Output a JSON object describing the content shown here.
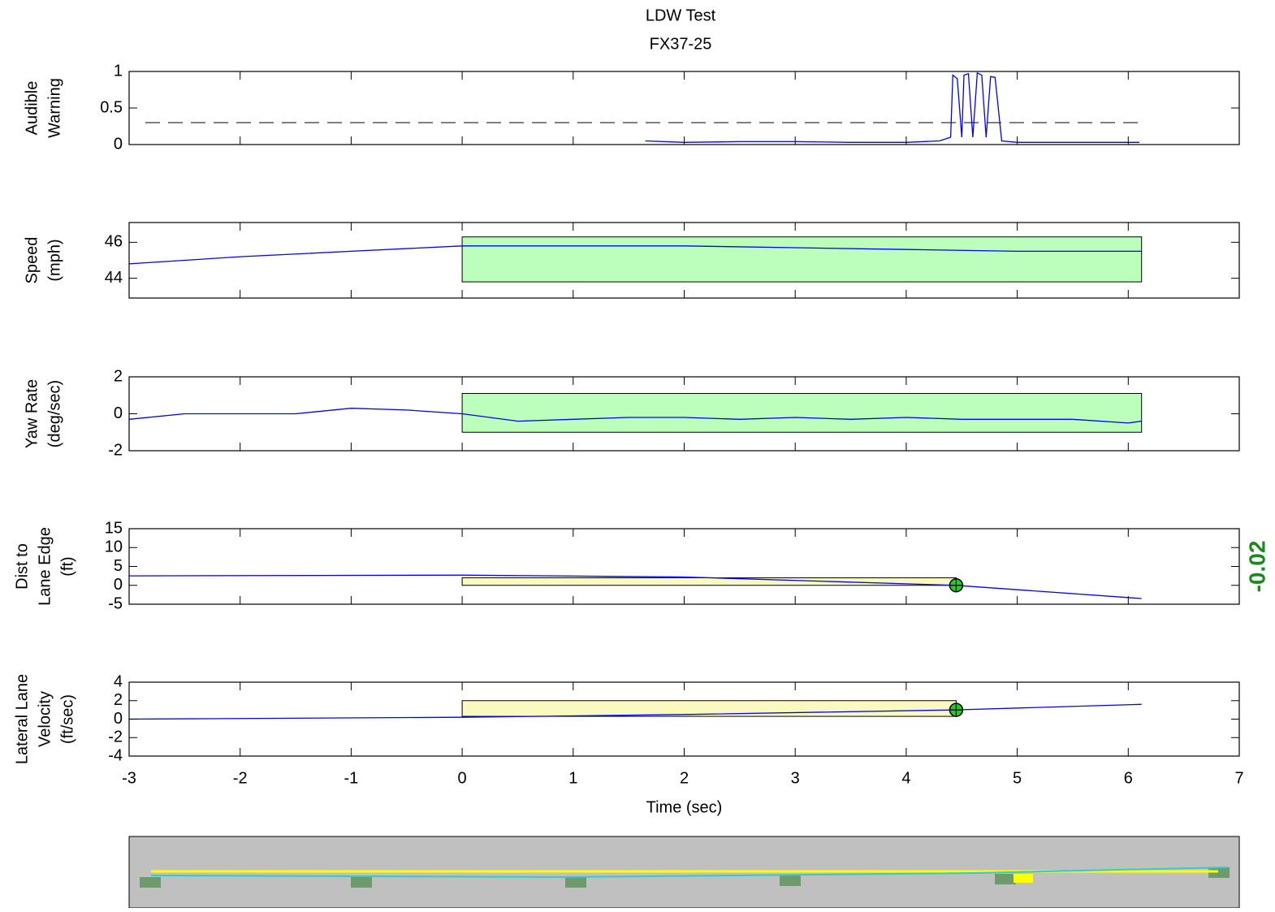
{
  "chart_data": [
    {
      "type": "line",
      "title": "LDW Test",
      "subtitle": "FX37-25",
      "ylabel": [
        "Audible",
        "Warning"
      ],
      "x": [
        1.65,
        2.0,
        2.5,
        3.0,
        3.5,
        4.0,
        4.3,
        4.4,
        4.42,
        4.46,
        4.5,
        4.52,
        4.56,
        4.6,
        4.64,
        4.68,
        4.72,
        4.76,
        4.8,
        4.86,
        5.0,
        5.5,
        6.1
      ],
      "values": [
        0.05,
        0.03,
        0.04,
        0.04,
        0.03,
        0.03,
        0.05,
        0.1,
        0.95,
        0.9,
        0.1,
        0.95,
        0.97,
        0.1,
        0.98,
        0.95,
        0.1,
        0.93,
        0.92,
        0.05,
        0.03,
        0.03,
        0.03
      ],
      "color": "#0000ff",
      "threshold": 0.3,
      "xlim": [
        -3,
        7
      ],
      "xticks": [
        -3,
        -2,
        -1,
        0,
        1,
        2,
        3,
        4,
        5,
        6,
        7
      ],
      "ylim": [
        0,
        1
      ],
      "yticks": [
        0,
        0.5,
        1
      ]
    },
    {
      "type": "line",
      "ylabel": [
        "Speed",
        "(mph)"
      ],
      "x": [
        -3,
        -2,
        -1,
        0,
        1,
        2,
        3,
        4,
        5,
        6.12
      ],
      "values": [
        44.8,
        45.2,
        45.5,
        45.8,
        45.8,
        45.8,
        45.7,
        45.6,
        45.5,
        45.5
      ],
      "color": "#0000ff",
      "bands": [
        {
          "x": [
            0,
            6.12
          ],
          "y": [
            43.8,
            46.3
          ],
          "color": "#bbffbb"
        }
      ],
      "xlim": [
        -3,
        7
      ],
      "xticks": [
        -3,
        -2,
        -1,
        0,
        1,
        2,
        3,
        4,
        5,
        6,
        7
      ],
      "ylim": [
        42.9,
        47.1
      ],
      "yticks": [
        44,
        46
      ]
    },
    {
      "type": "line",
      "ylabel": [
        "Yaw Rate",
        "(deg/sec)"
      ],
      "x": [
        -3,
        -2.5,
        -2,
        -1.5,
        -1,
        -0.5,
        0,
        0.5,
        1,
        1.5,
        2,
        2.5,
        3,
        3.5,
        4,
        4.5,
        5,
        5.5,
        6,
        6.12
      ],
      "values": [
        -0.3,
        0.0,
        0.0,
        0.0,
        0.3,
        0.2,
        0.0,
        -0.4,
        -0.3,
        -0.2,
        -0.2,
        -0.3,
        -0.2,
        -0.3,
        -0.2,
        -0.3,
        -0.3,
        -0.3,
        -0.5,
        -0.4
      ],
      "color": "#0000ff",
      "bands": [
        {
          "x": [
            0,
            6.12
          ],
          "y": [
            -1,
            1.1
          ],
          "color": "#bbffbb"
        }
      ],
      "xlim": [
        -3,
        7
      ],
      "xticks": [
        -3,
        -2,
        -1,
        0,
        1,
        2,
        3,
        4,
        5,
        6,
        7
      ],
      "ylim": [
        -2,
        2
      ],
      "yticks": [
        -2,
        0,
        2
      ]
    },
    {
      "type": "line",
      "ylabel": [
        "Dist to",
        "Lane Edge",
        "(ft)"
      ],
      "annotation": "-0.02",
      "x": [
        -3,
        0,
        2,
        4.45,
        6.12
      ],
      "values": [
        2.5,
        2.7,
        2.2,
        0,
        -3.5
      ],
      "color": "#0000ff",
      "bands": [
        {
          "x": [
            0,
            4.45
          ],
          "y": [
            0,
            2
          ],
          "color": "#fafac0"
        }
      ],
      "markers": [
        {
          "x": 4.45,
          "y": 0,
          "color": "#22cc22"
        }
      ],
      "xlim": [
        -3,
        7
      ],
      "xticks": [
        -3,
        -2,
        -1,
        0,
        1,
        2,
        3,
        4,
        5,
        6,
        7
      ],
      "ylim": [
        -5,
        15
      ],
      "yticks": [
        -5,
        0,
        5,
        10,
        15
      ]
    },
    {
      "type": "line",
      "ylabel": [
        "Lateral Lane",
        "Velocity",
        "(ft/sec)"
      ],
      "xlabel": "Time (sec)",
      "x": [
        -3,
        0,
        2,
        4.45,
        6.12
      ],
      "values": [
        0,
        0.2,
        0.5,
        1.0,
        1.6
      ],
      "color": "#0000ff",
      "bands": [
        {
          "x": [
            0,
            4.45
          ],
          "y": [
            0.3,
            2
          ],
          "color": "#fafac0"
        }
      ],
      "markers": [
        {
          "x": 4.45,
          "y": 1.0,
          "color": "#22cc22"
        }
      ],
      "xlim": [
        -3,
        7
      ],
      "xticks": [
        -3,
        -2,
        -1,
        0,
        1,
        2,
        3,
        4,
        5,
        6,
        7
      ],
      "ylim": [
        -4,
        4
      ],
      "yticks": [
        -4,
        -2,
        0,
        2,
        4
      ]
    }
  ]
}
